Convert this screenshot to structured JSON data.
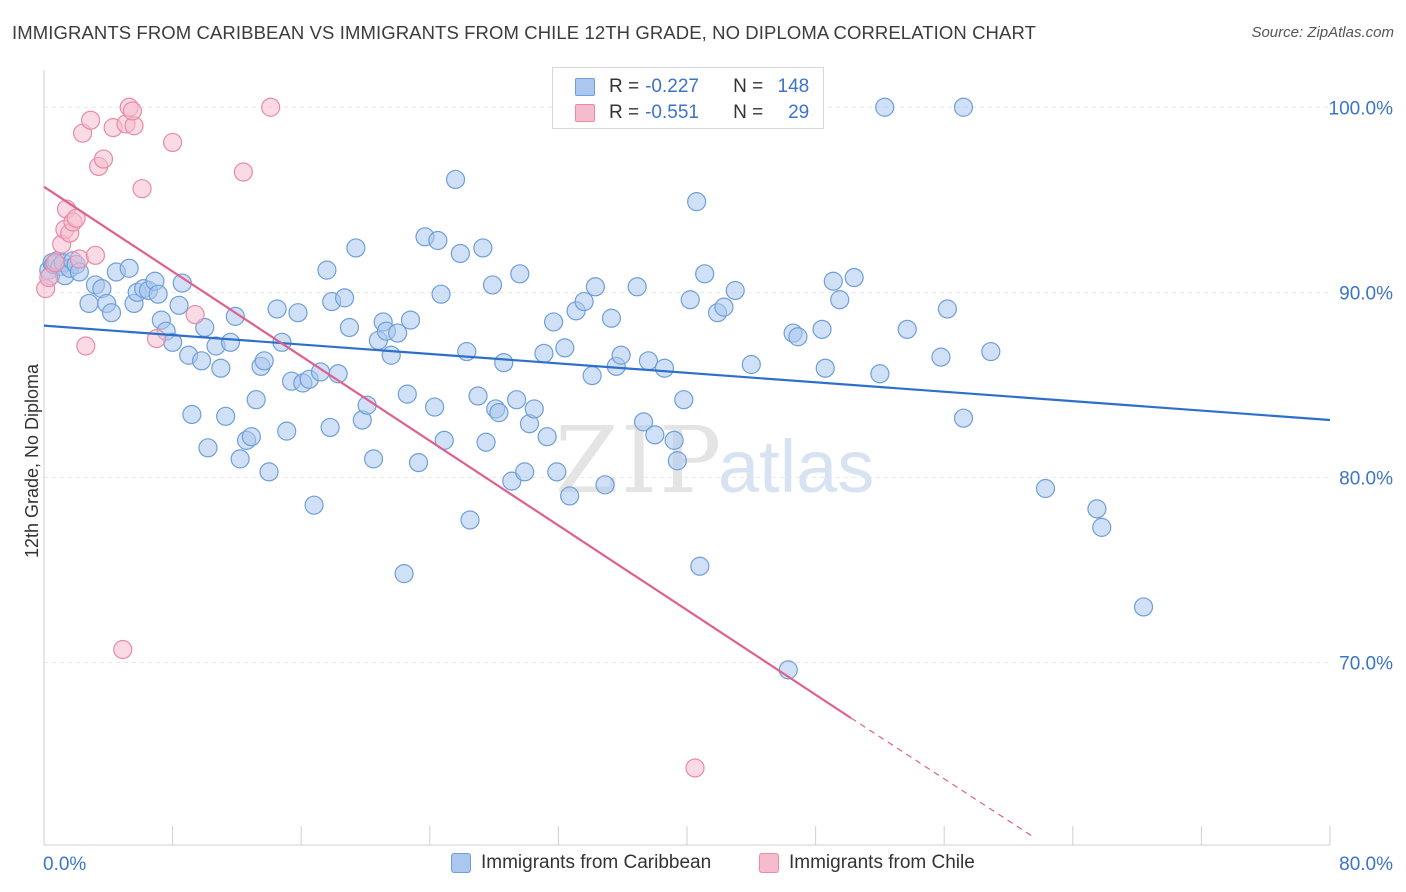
{
  "header": {
    "title": "IMMIGRANTS FROM CARIBBEAN VS IMMIGRANTS FROM CHILE 12TH GRADE, NO DIPLOMA CORRELATION CHART",
    "source": "Source: ZipAtlas.com"
  },
  "watermark": {
    "zip": "ZIP",
    "atlas": "atlas"
  },
  "colors": {
    "blue_fill": "#a9c7ef",
    "blue_stroke": "#6f9fd8",
    "blue_line": "#2f6fcc",
    "pink_fill": "#f6bccd",
    "pink_stroke": "#e98aa6",
    "pink_line": "#e0608d",
    "axis_text": "#3c74c8",
    "grid": "#e6e6e6"
  },
  "inset_legend": {
    "rows": [
      {
        "r_label": "R =",
        "r_value": "-0.227",
        "n_label": "N =",
        "n_value": "148"
      },
      {
        "r_label": "R =",
        "r_value": "-0.551",
        "n_label": "N =",
        "n_value": "29"
      }
    ]
  },
  "bottom_legend": {
    "items": [
      {
        "label": "Immigrants from Caribbean"
      },
      {
        "label": "Immigrants from Chile"
      }
    ]
  },
  "chart_data": {
    "type": "scatter",
    "title": "IMMIGRANTS FROM CARIBBEAN VS IMMIGRANTS FROM CHILE 12TH GRADE, NO DIPLOMA CORRELATION CHART",
    "xlabel": "",
    "ylabel": "12th Grade, No Diploma",
    "xlim": [
      0,
      80
    ],
    "ylim": [
      60.3,
      101.5
    ],
    "x_tick_labels": [
      "0.0%",
      "80.0%"
    ],
    "y_ticks": [
      70,
      80,
      90,
      100
    ],
    "y_tick_labels": [
      "70.0%",
      "80.0%",
      "90.0%",
      "100.0%"
    ],
    "grid": true,
    "legend_position": "bottom-center",
    "series": [
      {
        "name": "Immigrants from Caribbean",
        "color": "#a9c7ef",
        "r": -0.227,
        "n": 148,
        "trend": {
          "x": [
            0,
            80
          ],
          "y": [
            88.2,
            83.1
          ]
        },
        "points": [
          [
            0.3,
            91.2
          ],
          [
            0.4,
            90.9
          ],
          [
            0.5,
            91.6
          ],
          [
            0.6,
            91.5
          ],
          [
            0.8,
            91.7
          ],
          [
            1.0,
            91.4
          ],
          [
            1.2,
            91.6
          ],
          [
            1.3,
            90.9
          ],
          [
            1.6,
            91.3
          ],
          [
            1.8,
            91.7
          ],
          [
            2.0,
            91.5
          ],
          [
            2.2,
            91.1
          ],
          [
            2.8,
            89.4
          ],
          [
            3.2,
            90.4
          ],
          [
            3.6,
            90.2
          ],
          [
            3.9,
            89.4
          ],
          [
            4.2,
            88.9
          ],
          [
            4.5,
            91.1
          ],
          [
            5.3,
            91.3
          ],
          [
            5.6,
            89.4
          ],
          [
            5.8,
            90.0
          ],
          [
            6.2,
            90.2
          ],
          [
            6.5,
            90.1
          ],
          [
            6.9,
            90.6
          ],
          [
            7.1,
            89.9
          ],
          [
            7.3,
            88.5
          ],
          [
            7.6,
            87.9
          ],
          [
            8.0,
            87.3
          ],
          [
            8.4,
            89.3
          ],
          [
            8.6,
            90.5
          ],
          [
            9.0,
            86.6
          ],
          [
            9.2,
            83.4
          ],
          [
            9.8,
            86.3
          ],
          [
            10.0,
            88.1
          ],
          [
            10.2,
            81.6
          ],
          [
            10.7,
            87.1
          ],
          [
            11.0,
            85.9
          ],
          [
            11.3,
            83.3
          ],
          [
            11.6,
            87.3
          ],
          [
            11.9,
            88.7
          ],
          [
            12.2,
            81.0
          ],
          [
            12.6,
            82.0
          ],
          [
            12.9,
            82.2
          ],
          [
            13.2,
            84.2
          ],
          [
            13.5,
            86.0
          ],
          [
            13.7,
            86.3
          ],
          [
            14.0,
            80.3
          ],
          [
            14.5,
            89.1
          ],
          [
            14.8,
            87.3
          ],
          [
            15.1,
            82.5
          ],
          [
            15.4,
            85.2
          ],
          [
            15.8,
            88.9
          ],
          [
            16.1,
            85.1
          ],
          [
            16.5,
            85.3
          ],
          [
            16.8,
            78.5
          ],
          [
            17.2,
            85.7
          ],
          [
            17.6,
            91.2
          ],
          [
            17.8,
            82.7
          ],
          [
            17.9,
            89.5
          ],
          [
            18.3,
            85.6
          ],
          [
            18.7,
            89.7
          ],
          [
            19.0,
            88.1
          ],
          [
            19.4,
            92.4
          ],
          [
            19.8,
            83.1
          ],
          [
            20.1,
            83.9
          ],
          [
            20.5,
            81.0
          ],
          [
            20.8,
            87.4
          ],
          [
            21.1,
            88.4
          ],
          [
            21.3,
            87.9
          ],
          [
            21.6,
            86.6
          ],
          [
            22.0,
            87.8
          ],
          [
            22.4,
            74.8
          ],
          [
            22.6,
            84.5
          ],
          [
            22.8,
            88.5
          ],
          [
            23.3,
            80.8
          ],
          [
            23.7,
            93.0
          ],
          [
            24.3,
            83.8
          ],
          [
            24.5,
            92.8
          ],
          [
            24.7,
            89.9
          ],
          [
            24.9,
            82.0
          ],
          [
            25.6,
            96.1
          ],
          [
            25.9,
            92.1
          ],
          [
            26.3,
            86.8
          ],
          [
            26.5,
            77.7
          ],
          [
            27.0,
            84.4
          ],
          [
            27.3,
            92.4
          ],
          [
            27.5,
            81.9
          ],
          [
            27.9,
            90.4
          ],
          [
            28.1,
            83.7
          ],
          [
            28.3,
            83.5
          ],
          [
            28.6,
            86.2
          ],
          [
            29.1,
            79.8
          ],
          [
            29.4,
            84.2
          ],
          [
            29.6,
            91.0
          ],
          [
            29.9,
            80.3
          ],
          [
            30.2,
            82.9
          ],
          [
            30.5,
            83.7
          ],
          [
            31.1,
            86.7
          ],
          [
            31.3,
            82.2
          ],
          [
            31.7,
            88.4
          ],
          [
            31.9,
            80.3
          ],
          [
            32.4,
            87.0
          ],
          [
            32.7,
            79.0
          ],
          [
            33.1,
            89.0
          ],
          [
            33.6,
            89.5
          ],
          [
            34.1,
            85.5
          ],
          [
            34.3,
            90.3
          ],
          [
            34.9,
            79.6
          ],
          [
            35.3,
            88.6
          ],
          [
            35.6,
            86.0
          ],
          [
            35.9,
            86.6
          ],
          [
            36.9,
            90.3
          ],
          [
            37.3,
            83.0
          ],
          [
            37.6,
            86.3
          ],
          [
            38.0,
            82.3
          ],
          [
            38.6,
            85.9
          ],
          [
            39.2,
            82.0
          ],
          [
            39.4,
            80.9
          ],
          [
            39.8,
            84.2
          ],
          [
            40.2,
            89.6
          ],
          [
            40.6,
            94.9
          ],
          [
            40.8,
            75.2
          ],
          [
            41.1,
            91.0
          ],
          [
            41.9,
            88.9
          ],
          [
            42.3,
            89.2
          ],
          [
            43.0,
            90.1
          ],
          [
            44.0,
            86.1
          ],
          [
            46.3,
            69.6
          ],
          [
            46.6,
            87.8
          ],
          [
            46.9,
            87.6
          ],
          [
            48.4,
            88.0
          ],
          [
            48.6,
            85.9
          ],
          [
            49.1,
            90.6
          ],
          [
            49.5,
            89.6
          ],
          [
            50.4,
            90.8
          ],
          [
            52.0,
            85.6
          ],
          [
            52.3,
            100.0
          ],
          [
            53.7,
            88.0
          ],
          [
            55.8,
            86.5
          ],
          [
            56.2,
            89.1
          ],
          [
            57.2,
            100.0
          ],
          [
            57.2,
            83.2
          ],
          [
            58.9,
            86.8
          ],
          [
            62.3,
            79.4
          ],
          [
            65.5,
            78.3
          ],
          [
            65.8,
            77.3
          ],
          [
            68.4,
            73.0
          ]
        ]
      },
      {
        "name": "Immigrants from Chile",
        "color": "#f6bccd",
        "r": -0.551,
        "n": 29,
        "trend": {
          "x": [
            0,
            50.2
          ],
          "y": [
            95.7,
            67.0
          ]
        },
        "trend_extension": {
          "x": [
            50.2,
            61.5
          ],
          "y": [
            67.0,
            60.6
          ]
        },
        "points": [
          [
            0.1,
            90.2
          ],
          [
            0.3,
            90.8
          ],
          [
            0.7,
            91.6
          ],
          [
            1.1,
            92.6
          ],
          [
            1.3,
            93.4
          ],
          [
            1.4,
            94.5
          ],
          [
            1.6,
            93.2
          ],
          [
            1.8,
            93.8
          ],
          [
            2.0,
            94.0
          ],
          [
            2.2,
            91.8
          ],
          [
            2.4,
            98.6
          ],
          [
            2.6,
            87.1
          ],
          [
            2.9,
            99.3
          ],
          [
            3.2,
            92.0
          ],
          [
            3.4,
            96.8
          ],
          [
            3.7,
            97.2
          ],
          [
            4.3,
            98.9
          ],
          [
            4.9,
            70.7
          ],
          [
            5.1,
            99.1
          ],
          [
            5.6,
            99.0
          ],
          [
            5.3,
            100.0
          ],
          [
            5.5,
            99.8
          ],
          [
            6.1,
            95.6
          ],
          [
            7.0,
            87.5
          ],
          [
            8.0,
            98.1
          ],
          [
            9.4,
            88.8
          ],
          [
            12.4,
            96.5
          ],
          [
            14.1,
            100.0
          ],
          [
            40.5,
            64.3
          ]
        ]
      }
    ]
  }
}
